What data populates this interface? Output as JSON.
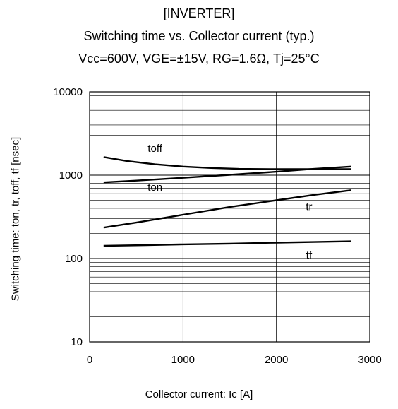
{
  "title_lines": [
    "[INVERTER]",
    "Switching time vs. Collector current  (typ.)",
    "Vcc=600V, VGE=±15V, RG=1.6Ω, Tj=25°C"
  ],
  "chart_data": {
    "type": "line",
    "title": "Switching time vs. Collector current  (typ.)",
    "xlabel": "Collector current: Ic [A]",
    "ylabel": "Switching time: ton, tr, toff, tf [nsec]",
    "xlim": [
      0,
      3000
    ],
    "ylim": [
      10,
      10000
    ],
    "yscale": "log",
    "grid": true,
    "x_ticks": [
      "0",
      "1000",
      "2000",
      "3000"
    ],
    "y_ticks": [
      "10",
      "100",
      "1000",
      "10000"
    ],
    "series": [
      {
        "name": "toff",
        "x": [
          150,
          400,
          700,
          1000,
          1300,
          1600,
          2000,
          2400,
          2800
        ],
        "y": [
          1650,
          1480,
          1350,
          1270,
          1220,
          1190,
          1180,
          1180,
          1180
        ]
      },
      {
        "name": "ton",
        "x": [
          150,
          500,
          1000,
          1500,
          2000,
          2400,
          2800
        ],
        "y": [
          820,
          860,
          930,
          1010,
          1100,
          1190,
          1270
        ]
      },
      {
        "name": "tr",
        "x": [
          150,
          500,
          1000,
          1500,
          2000,
          2400,
          2800
        ],
        "y": [
          235,
          270,
          335,
          415,
          500,
          580,
          660
        ]
      },
      {
        "name": "tf",
        "x": [
          150,
          600,
          1000,
          1500,
          2000,
          2400,
          2800
        ],
        "y": [
          142,
          145,
          148,
          151,
          155,
          158,
          161
        ]
      }
    ],
    "annotations": [
      {
        "text": "toff",
        "x": 700,
        "y": 1900
      },
      {
        "text": "ton",
        "x": 700,
        "y": 650
      },
      {
        "text": "tr",
        "x": 2350,
        "y": 380
      },
      {
        "text": "tf",
        "x": 2350,
        "y": 100
      }
    ]
  }
}
